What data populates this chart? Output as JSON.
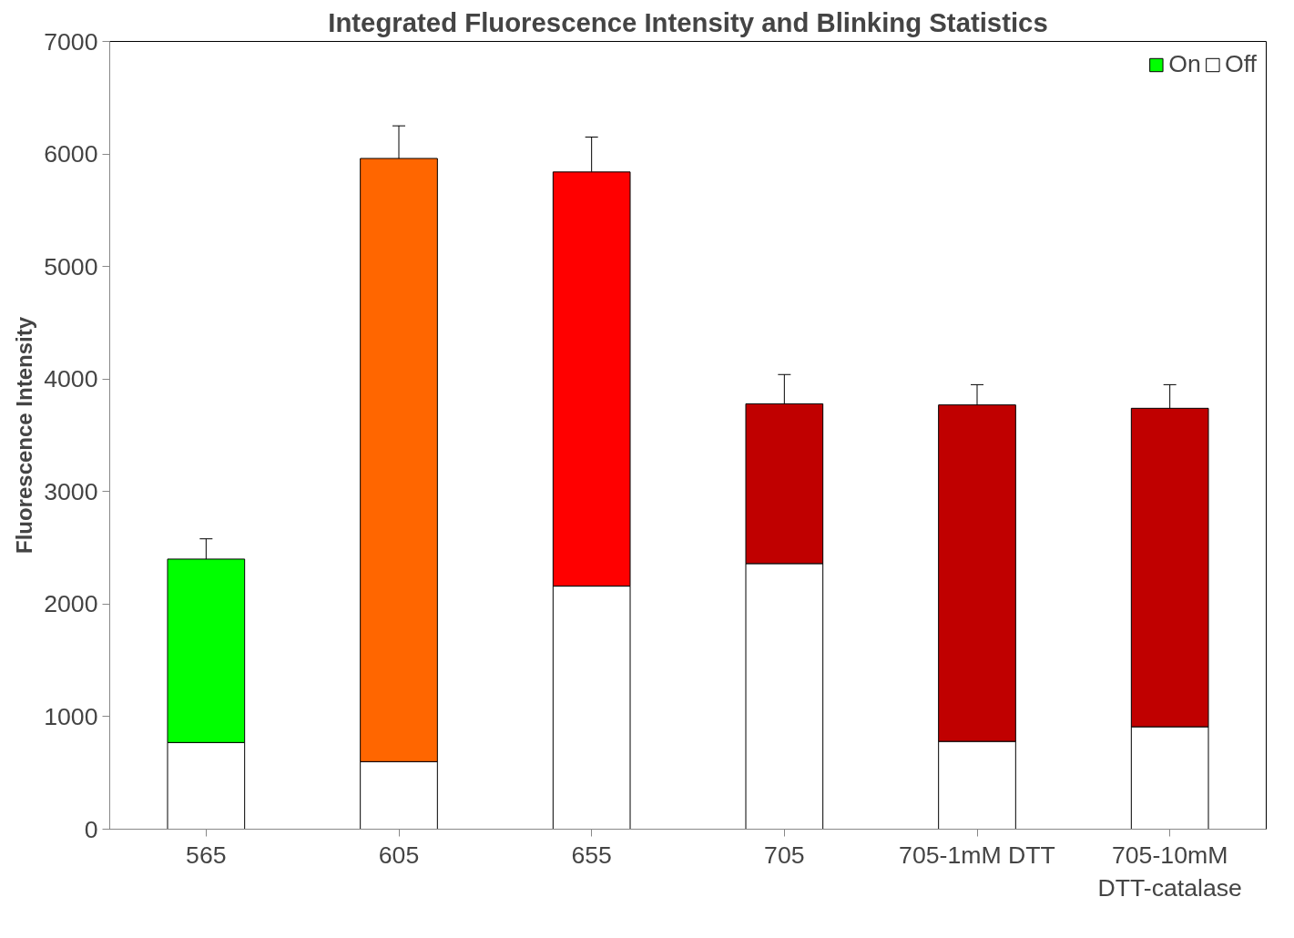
{
  "chart_data": {
    "type": "bar",
    "title": "Integrated Fluorescence Intensity and Blinking Statistics",
    "ylabel": "Fluorescence Intensity",
    "categories": [
      "565",
      "605",
      "655",
      "705",
      "705-1mM DTT",
      "705-10mM DTT-catalase"
    ],
    "stacked": true,
    "series": [
      {
        "name": "Off",
        "color": "#ffffff",
        "values": [
          770,
          600,
          2160,
          2360,
          780,
          910
        ]
      },
      {
        "name": "On",
        "color": "#00ff00",
        "colors": [
          "#00ff00",
          "#ff6600",
          "#ff0000",
          "#c00000",
          "#c00000",
          "#c00000"
        ],
        "values": [
          1630,
          5360,
          3680,
          1420,
          2990,
          2830
        ],
        "errors": [
          [
            2400,
            2580
          ],
          [
            5960,
            6250
          ],
          [
            5840,
            6150
          ],
          [
            3780,
            4040
          ],
          [
            3770,
            3950
          ],
          [
            3740,
            3950
          ]
        ]
      }
    ],
    "ylim": [
      0,
      7000
    ],
    "yticks": [
      0,
      1000,
      2000,
      3000,
      4000,
      5000,
      6000,
      7000
    ],
    "grid": false,
    "legend": "top right"
  }
}
